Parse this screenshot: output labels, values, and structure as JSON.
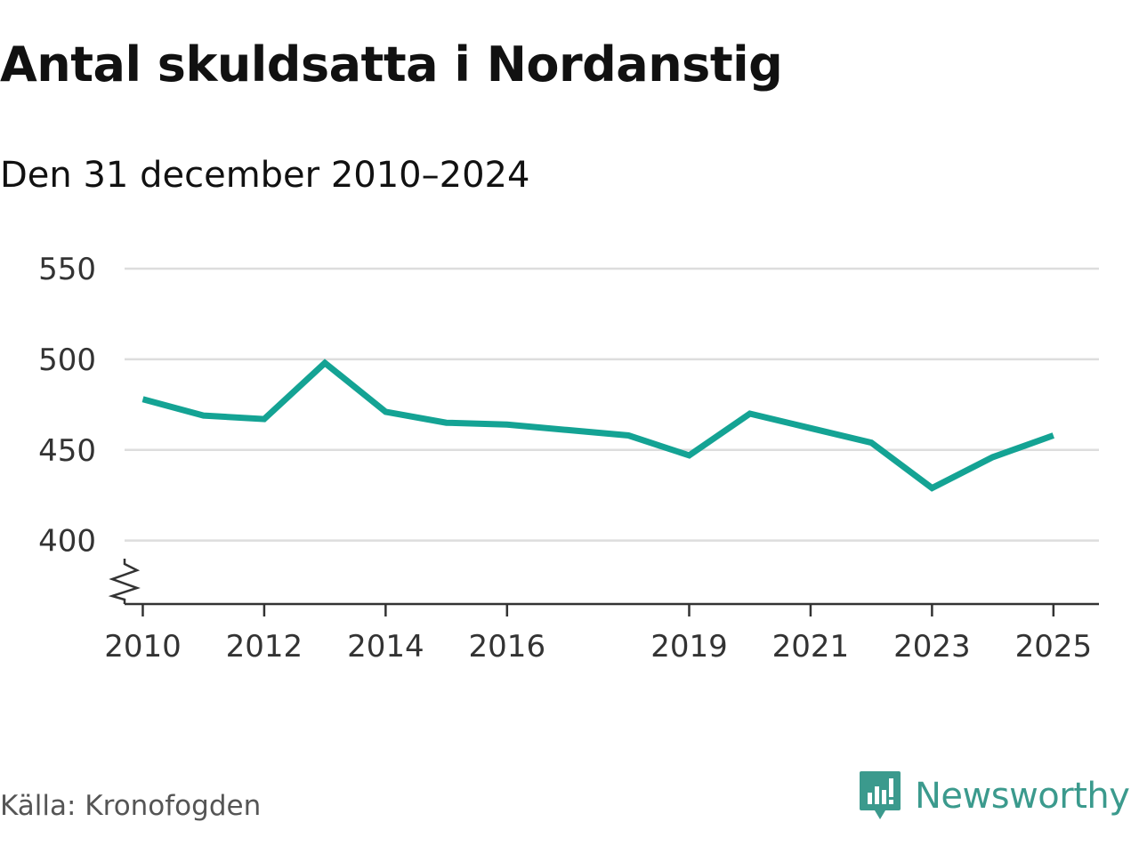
{
  "title": "Antal skuldsatta i Nordanstig",
  "subtitle": "Den 31 december 2010–2024",
  "source": "Källa: Kronofogden",
  "brand": "Newsworthy",
  "colors": {
    "line": "#14a394",
    "grid": "#dddddd",
    "axis": "#333333",
    "brand": "#3b9a8d"
  },
  "chart_data": {
    "type": "line",
    "title": "Antal skuldsatta i Nordanstig",
    "subtitle": "Den 31 december 2010–2024",
    "x_ticks": [
      "2010",
      "2012",
      "2014",
      "2016",
      "2019",
      "2021",
      "2023",
      "2025"
    ],
    "y_ticks": [
      "400",
      "450",
      "500",
      "550"
    ],
    "ylim": [
      365,
      550
    ],
    "xlim": [
      2009.7,
      2025.75
    ],
    "axis_break": true,
    "grid": true,
    "series": [
      {
        "x": [
          2010,
          2011,
          2012,
          2013,
          2014,
          2015,
          2016,
          2017,
          2018,
          2019,
          2020,
          2021,
          2022,
          2023,
          2024,
          2025
        ],
        "values": [
          478,
          469,
          467,
          498,
          471,
          465,
          464,
          461,
          458,
          447,
          470,
          462,
          454,
          429,
          446,
          458
        ]
      }
    ]
  }
}
